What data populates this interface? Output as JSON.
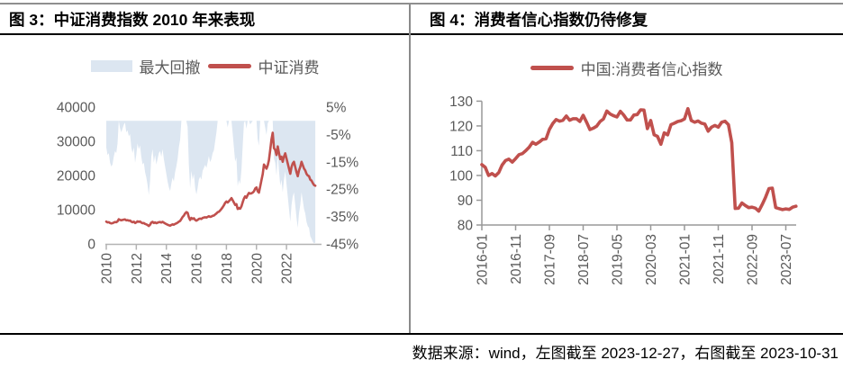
{
  "colors": {
    "line": "#c0504d",
    "area": "#dce6f1",
    "axis_left_chart": "#b3b3b3",
    "axis_right_chart": "#999999",
    "tick_text": "#595959"
  },
  "left_panel": {
    "title": "图 3：中证消费指数 2010 年来表现",
    "legend": {
      "area_label": "最大回撤",
      "line_label": "中证消费"
    }
  },
  "right_panel": {
    "title": "图 4：消费者信心指数仍待修复",
    "legend": {
      "line_label": "中国:消费者信心指数"
    }
  },
  "footer": {
    "source_note": "数据来源：wind，左图截至 2023-12-27，右图截至 2023-10-31"
  },
  "chart_data": [
    {
      "id": "csi-consumer-index",
      "type": "area+line",
      "title": "中证消费指数 2010 年来表现",
      "grid": false,
      "legend_position": "top",
      "x": {
        "start_year": 2010,
        "freq": "monthly",
        "range": [
          2010,
          2024.3
        ],
        "tick_years": [
          2010,
          2012,
          2014,
          2016,
          2018,
          2020,
          2022
        ],
        "tick_labels": [
          "2010",
          "2012",
          "2014",
          "2016",
          "2018",
          "2020",
          "2022"
        ]
      },
      "y_left": {
        "range": [
          0,
          40000
        ],
        "ticks": [
          0,
          10000,
          20000,
          30000,
          40000
        ],
        "tick_labels": [
          "0",
          "10000",
          "20000",
          "30000",
          "40000"
        ]
      },
      "y_right": {
        "range": [
          -45,
          5
        ],
        "ticks": [
          5,
          -5,
          -15,
          -25,
          -35,
          -45
        ],
        "tick_labels": [
          "5%",
          "-5%",
          "-15%",
          "-25%",
          "-35%",
          "-45%"
        ]
      },
      "series": [
        {
          "name": "最大回撤",
          "type": "area",
          "axis": "right",
          "unit": "%",
          "values": [
            -9.7,
            -12.5,
            -11.8,
            -15.3,
            -16.7,
            -16.0,
            -13.2,
            -11.1,
            -11.8,
            -8.3,
            0,
            -2.8,
            -4.2,
            -2.8,
            -1.4,
            -0.7,
            -4.2,
            -3.5,
            -5.6,
            -4.9,
            -9.7,
            -11.8,
            -9.7,
            -15.3,
            -12.5,
            -8.3,
            -10.4,
            -9.0,
            -13.2,
            -16.0,
            -15.3,
            -18.8,
            -20.8,
            -23.6,
            -27.1,
            -22.2,
            -13.2,
            -10.4,
            -15.3,
            -12.5,
            -16.0,
            -13.9,
            -11.8,
            -11.1,
            -13.2,
            -10.4,
            -13.9,
            -16.7,
            -19.4,
            -22.2,
            -24.3,
            -25.7,
            -22.9,
            -20.8,
            -22.2,
            -18.8,
            -16.7,
            -13.9,
            -9.7,
            -6.9,
            0,
            0,
            0,
            0,
            0,
            -2.2,
            -16.1,
            -24.7,
            -18.3,
            -21.5,
            -19.4,
            -24.7,
            -26.9,
            -24.7,
            -21.5,
            -20.4,
            -21.5,
            -18.3,
            -17.2,
            -16.1,
            -17.2,
            -15.1,
            -12.9,
            -15.1,
            -14.0,
            -11.8,
            -10.8,
            -7.5,
            -4.3,
            0,
            0,
            0,
            0,
            0,
            0,
            0,
            0,
            -2.4,
            0,
            0,
            0,
            -4.5,
            -9.7,
            -14.9,
            -13.4,
            -23.9,
            -21.6,
            -23.1,
            -17.9,
            -9.0,
            -0.7,
            0,
            -2.9,
            0,
            0,
            -1.3,
            -0.7,
            0,
            0,
            0,
            0,
            -6.7,
            -9.1,
            0,
            0,
            0,
            0,
            -2.6,
            -5.2,
            -0.9,
            0,
            0,
            0,
            0,
            -13.8,
            -15.4,
            -20.0,
            -12.3,
            -18.5,
            -23.7,
            -21.5,
            -26.2,
            -21.5,
            -18.5,
            -23.1,
            -27.7,
            -32.3,
            -36.9,
            -30.8,
            -27.7,
            -26.2,
            -30.8,
            -35.4,
            -39.1,
            -33.8,
            -30.8,
            -26.2,
            -29.2,
            -32.3,
            -33.8,
            -36.9,
            -38.5,
            -39.1,
            -42.2,
            -43.1,
            -44.2,
            -44.8,
            -44.5
          ]
        },
        {
          "name": "中证消费",
          "type": "line",
          "axis": "left",
          "values": [
            6500,
            6300,
            6350,
            6100,
            6000,
            6050,
            6250,
            6400,
            6350,
            6600,
            7200,
            7000,
            6900,
            7000,
            7100,
            7150,
            6900,
            6950,
            6800,
            6850,
            6500,
            6350,
            6500,
            6100,
            6300,
            6600,
            6450,
            6550,
            6250,
            6050,
            6100,
            5850,
            5700,
            5500,
            5250,
            5600,
            6250,
            6450,
            6100,
            6300,
            6050,
            6200,
            6350,
            6400,
            6250,
            6450,
            6200,
            6000,
            5800,
            5600,
            5450,
            5350,
            5550,
            5700,
            5600,
            5850,
            6000,
            6200,
            6500,
            6700,
            7300,
            7900,
            8300,
            8900,
            9300,
            9100,
            7800,
            7000,
            7600,
            7300,
            7500,
            7000,
            6800,
            7000,
            7300,
            7400,
            7300,
            7600,
            7700,
            7800,
            7700,
            7900,
            8100,
            7900,
            8000,
            8200,
            8300,
            8600,
            8900,
            9300,
            9400,
            9800,
            10200,
            10700,
            11300,
            12000,
            12400,
            12100,
            12500,
            12900,
            13400,
            12800,
            12100,
            11400,
            11600,
            10200,
            10500,
            10300,
            11000,
            12200,
            13300,
            13900,
            13500,
            14300,
            14900,
            14700,
            14800,
            15000,
            15400,
            16200,
            16500,
            15400,
            15000,
            16800,
            18600,
            20400,
            23200,
            22600,
            22000,
            23000,
            24500,
            27400,
            30500,
            32500,
            28000,
            27500,
            26000,
            28500,
            26500,
            24800,
            25500,
            24000,
            25500,
            26500,
            25000,
            23500,
            22000,
            20500,
            22500,
            23500,
            24000,
            22500,
            21000,
            19800,
            21500,
            22500,
            24000,
            23000,
            22000,
            21500,
            20500,
            20000,
            19800,
            18800,
            18500,
            17800,
            17200,
            17000
          ]
        }
      ]
    },
    {
      "id": "china-consumer-confidence",
      "type": "line",
      "title": "消费者信心指数仍待修复",
      "grid": false,
      "legend_position": "top",
      "x": {
        "start": "2016-01",
        "freq": "monthly",
        "tick_indices": [
          0,
          10,
          20,
          30,
          40,
          50,
          60,
          70,
          80,
          90
        ],
        "tick_labels": [
          "2016-01",
          "2016-11",
          "2017-09",
          "2018-07",
          "2019-05",
          "2020-03",
          "2021-01",
          "2021-11",
          "2022-09",
          "2023-07"
        ]
      },
      "y": {
        "range": [
          80,
          130
        ],
        "ticks": [
          80,
          90,
          100,
          110,
          120,
          130
        ],
        "tick_labels": [
          "80",
          "90",
          "100",
          "110",
          "120",
          "130"
        ]
      },
      "series": [
        {
          "name": "中国:消费者信心指数",
          "type": "line",
          "values": [
            104.4,
            103.3,
            100.0,
            100.8,
            99.8,
            101.2,
            104.2,
            106.0,
            106.6,
            105.4,
            106.8,
            108.4,
            108.8,
            110.0,
            111.4,
            113.4,
            112.6,
            113.5,
            114.6,
            114.8,
            118.6,
            121.0,
            122.6,
            121.9,
            122.3,
            124.0,
            122.3,
            122.9,
            122.9,
            121.8,
            124.3,
            121.5,
            118.5,
            119.1,
            119.9,
            121.8,
            122.8,
            126.0,
            124.8,
            124.1,
            123.6,
            125.9,
            124.4,
            122.4,
            122.4,
            124.4,
            124.6,
            126.5,
            126.4,
            118.9,
            122.2,
            116.4,
            115.8,
            112.6,
            117.2,
            116.4,
            120.5,
            121.1,
            121.8,
            122.1,
            122.8,
            127.0,
            122.2,
            121.5,
            122.0,
            121.1,
            120.8,
            117.9,
            119.5,
            120.2,
            119.5,
            121.5,
            121.9,
            120.5,
            113.2,
            86.7,
            86.8,
            88.9,
            87.9,
            87.0,
            87.2,
            86.8,
            85.6,
            88.3,
            91.2,
            94.7,
            94.9,
            87.0,
            86.6,
            86.2,
            86.5,
            86.3,
            87.2,
            87.6
          ]
        }
      ]
    }
  ]
}
